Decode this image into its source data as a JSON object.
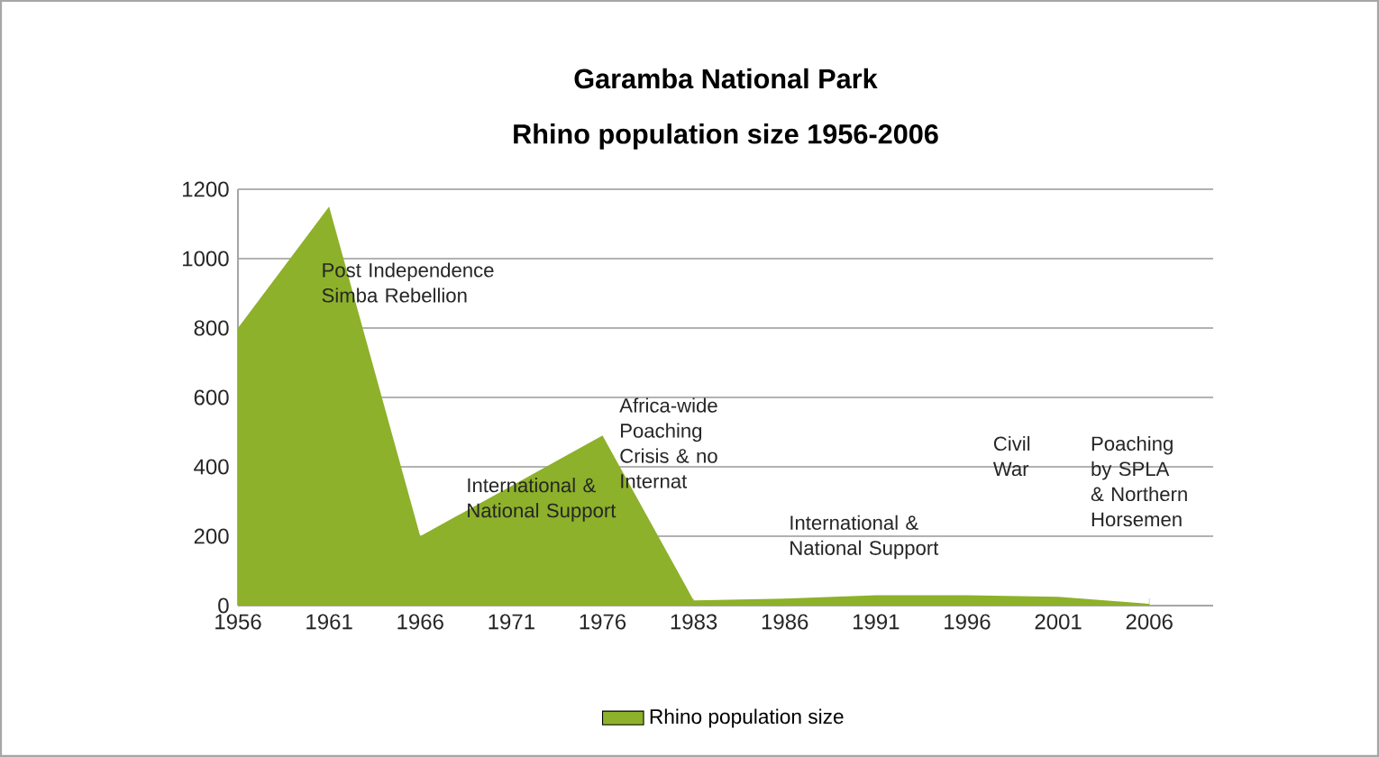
{
  "chart_data": {
    "type": "area",
    "title": "Garamba National Park",
    "subtitle": "Rhino population size 1956-2006",
    "categories": [
      "1956",
      "1961",
      "1966",
      "1971",
      "1976",
      "1983",
      "1986",
      "1991",
      "1996",
      "2001",
      "2006"
    ],
    "series": [
      {
        "name": "Rhino population size",
        "color": "#8db12a",
        "values": [
          800,
          1150,
          200,
          345,
          490,
          15,
          20,
          30,
          30,
          25,
          5
        ]
      }
    ],
    "ylim": [
      0,
      1200
    ],
    "yticks": [
      0,
      200,
      400,
      600,
      800,
      1000,
      1200
    ],
    "grid": "y",
    "legend": "bottom",
    "annotations": [
      "Post Independence Simba Rebellion",
      "International & National Support",
      "Africa-wide Poaching Crisis & no Internat",
      "International & National Support",
      "Civil War",
      "Poaching by SPLA & Northern Horsemen"
    ]
  }
}
